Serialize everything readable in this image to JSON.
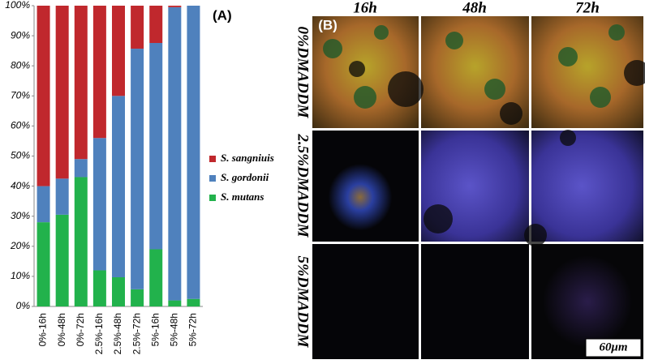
{
  "chart_data": {
    "type": "stacked-bar",
    "title": "(A)",
    "categories": [
      "0%-16h",
      "0%-48h",
      "0%-72h",
      "2.5%-16h",
      "2.5%-48h",
      "2.5%-72h",
      "5%-16h",
      "5%-48h",
      "5%-72h"
    ],
    "series": [
      {
        "name": "S. mutans",
        "color": "#22b24c",
        "values": [
          28,
          30.5,
          43,
          12,
          9.7,
          5.7,
          19,
          2,
          2.5
        ]
      },
      {
        "name": "S. gordonii",
        "color": "#4f81bd",
        "values": [
          12,
          12,
          6,
          44,
          60.3,
          80,
          68.6,
          97.5,
          97.5
        ]
      },
      {
        "name": "S. sangniuis",
        "color": "#c0282d",
        "values": [
          60,
          57.5,
          51,
          44,
          30,
          14.3,
          12.4,
          0.5,
          0
        ]
      }
    ],
    "ylim": [
      0,
      100
    ],
    "yticks": [
      {
        "value": 0,
        "label": "0%"
      },
      {
        "value": 10,
        "label": "10%"
      },
      {
        "value": 20,
        "label": "20%"
      },
      {
        "value": 30,
        "label": "30%"
      },
      {
        "value": 40,
        "label": "40%"
      },
      {
        "value": 50,
        "label": "50%"
      },
      {
        "value": 60,
        "label": "60%"
      },
      {
        "value": 70,
        "label": "70%"
      },
      {
        "value": 80,
        "label": "80%"
      },
      {
        "value": 90,
        "label": "90%"
      },
      {
        "value": 100,
        "label": "100%"
      }
    ],
    "grid": false,
    "legend": "right"
  },
  "image_panel": {
    "label": "(B)",
    "columns": [
      "16h",
      "48h",
      "72h"
    ],
    "rows": [
      "0%DMADDM",
      "2.5%DMADDM",
      "5%DMADDM"
    ],
    "scale_bar": "60μm"
  }
}
